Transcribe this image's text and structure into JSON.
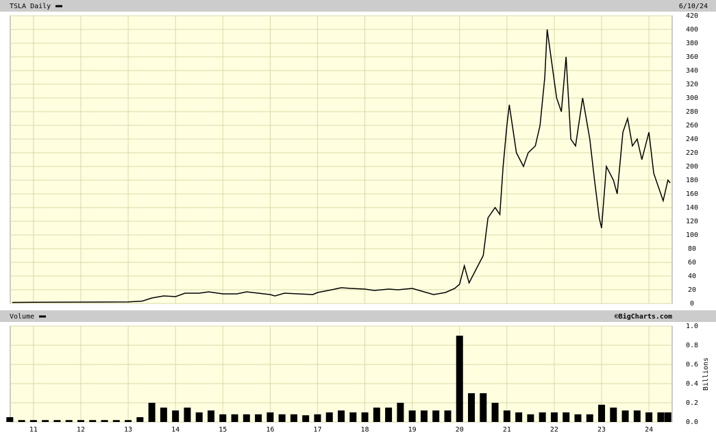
{
  "chart_data": [
    {
      "type": "line",
      "title": "TSLA Daily",
      "date": "6/10/24",
      "color": "#000000",
      "grid": true,
      "x": [
        2010.55,
        2011,
        2012,
        2013,
        2013.3,
        2013.5,
        2013.75,
        2014,
        2014.2,
        2014.5,
        2014.7,
        2015,
        2015.3,
        2015.5,
        2015.75,
        2016,
        2016.1,
        2016.3,
        2016.6,
        2016.9,
        2017,
        2017.3,
        2017.5,
        2017.7,
        2018,
        2018.2,
        2018.5,
        2018.7,
        2019,
        2019.2,
        2019.45,
        2019.7,
        2019.9,
        2020.0,
        2020.1,
        2020.2,
        2020.35,
        2020.5,
        2020.6,
        2020.75,
        2020.85,
        2020.92,
        2021.0,
        2021.05,
        2021.2,
        2021.35,
        2021.45,
        2021.6,
        2021.7,
        2021.8,
        2021.85,
        2021.95,
        2022.05,
        2022.15,
        2022.25,
        2022.35,
        2022.45,
        2022.6,
        2022.75,
        2022.85,
        2022.95,
        2023.0,
        2023.1,
        2023.25,
        2023.33,
        2023.45,
        2023.55,
        2023.65,
        2023.75,
        2023.85,
        2024.0,
        2024.1,
        2024.2,
        2024.3,
        2024.4,
        2024.45
      ],
      "values": [
        1.5,
        1.8,
        2.0,
        2.3,
        3.5,
        8,
        11,
        10,
        15,
        15,
        17,
        14,
        14,
        17,
        15,
        13,
        11,
        15,
        14,
        13,
        16,
        20,
        23,
        22,
        21,
        19,
        21,
        20,
        22,
        18,
        13,
        16,
        22,
        28,
        55,
        30,
        50,
        70,
        125,
        140,
        130,
        200,
        260,
        290,
        220,
        200,
        220,
        230,
        260,
        330,
        400,
        350,
        300,
        280,
        360,
        240,
        230,
        300,
        240,
        180,
        125,
        110,
        200,
        180,
        160,
        250,
        270,
        230,
        240,
        210,
        250,
        190,
        170,
        150,
        180,
        176
      ],
      "xlim": [
        2010.51,
        2024.49
      ],
      "xticks": [
        2011,
        2012,
        2013,
        2014,
        2015,
        2016,
        2017,
        2018,
        2019,
        2020,
        2021,
        2022,
        2023,
        2024
      ],
      "ylim": [
        0,
        420
      ],
      "yticks": [
        0,
        20,
        40,
        60,
        80,
        100,
        120,
        140,
        160,
        180,
        200,
        220,
        240,
        260,
        280,
        300,
        320,
        340,
        360,
        380,
        400,
        420
      ]
    },
    {
      "type": "bar",
      "title": "Volume",
      "source": "©BigCharts.com",
      "y_label": "Billions",
      "color": "#000000",
      "grid": true,
      "x": [
        2010.5,
        2010.75,
        2011,
        2011.25,
        2011.5,
        2011.75,
        2012,
        2012.25,
        2012.5,
        2012.75,
        2013,
        2013.25,
        2013.5,
        2013.75,
        2014,
        2014.25,
        2014.5,
        2014.75,
        2015,
        2015.25,
        2015.5,
        2015.75,
        2016,
        2016.25,
        2016.5,
        2016.75,
        2017,
        2017.25,
        2017.5,
        2017.75,
        2018,
        2018.25,
        2018.5,
        2018.75,
        2019,
        2019.25,
        2019.5,
        2019.75,
        2020,
        2020.25,
        2020.5,
        2020.75,
        2021,
        2021.25,
        2021.5,
        2021.75,
        2022,
        2022.25,
        2022.5,
        2022.75,
        2023,
        2023.25,
        2023.5,
        2023.75,
        2024,
        2024.25,
        2024.4
      ],
      "values": [
        0.05,
        0.02,
        0.02,
        0.02,
        0.02,
        0.02,
        0.02,
        0.02,
        0.02,
        0.02,
        0.02,
        0.05,
        0.2,
        0.15,
        0.12,
        0.15,
        0.1,
        0.12,
        0.08,
        0.08,
        0.08,
        0.08,
        0.1,
        0.08,
        0.08,
        0.07,
        0.08,
        0.1,
        0.12,
        0.1,
        0.1,
        0.15,
        0.15,
        0.2,
        0.12,
        0.12,
        0.12,
        0.12,
        0.9,
        0.3,
        0.3,
        0.2,
        0.12,
        0.1,
        0.08,
        0.1,
        0.1,
        0.1,
        0.08,
        0.08,
        0.18,
        0.15,
        0.12,
        0.12,
        0.1,
        0.1,
        0.1
      ],
      "xlim": [
        2010.51,
        2024.49
      ],
      "xticks": [
        {
          "value": 2011,
          "label": "11"
        },
        {
          "value": 2012,
          "label": "12"
        },
        {
          "value": 2013,
          "label": "13"
        },
        {
          "value": 2014,
          "label": "14"
        },
        {
          "value": 2015,
          "label": "15"
        },
        {
          "value": 2016,
          "label": "16"
        },
        {
          "value": 2017,
          "label": "17"
        },
        {
          "value": 2018,
          "label": "18"
        },
        {
          "value": 2019,
          "label": "19"
        },
        {
          "value": 2020,
          "label": "20"
        },
        {
          "value": 2021,
          "label": "21"
        },
        {
          "value": 2022,
          "label": "22"
        },
        {
          "value": 2023,
          "label": "23"
        },
        {
          "value": 2024,
          "label": "24"
        }
      ],
      "ylim": [
        0,
        1.0
      ],
      "yticks": [
        {
          "value": 0,
          "label": "0.0"
        },
        0.2,
        0.4,
        0.6,
        0.8,
        {
          "value": 1.0,
          "label": "1.0"
        }
      ]
    }
  ]
}
